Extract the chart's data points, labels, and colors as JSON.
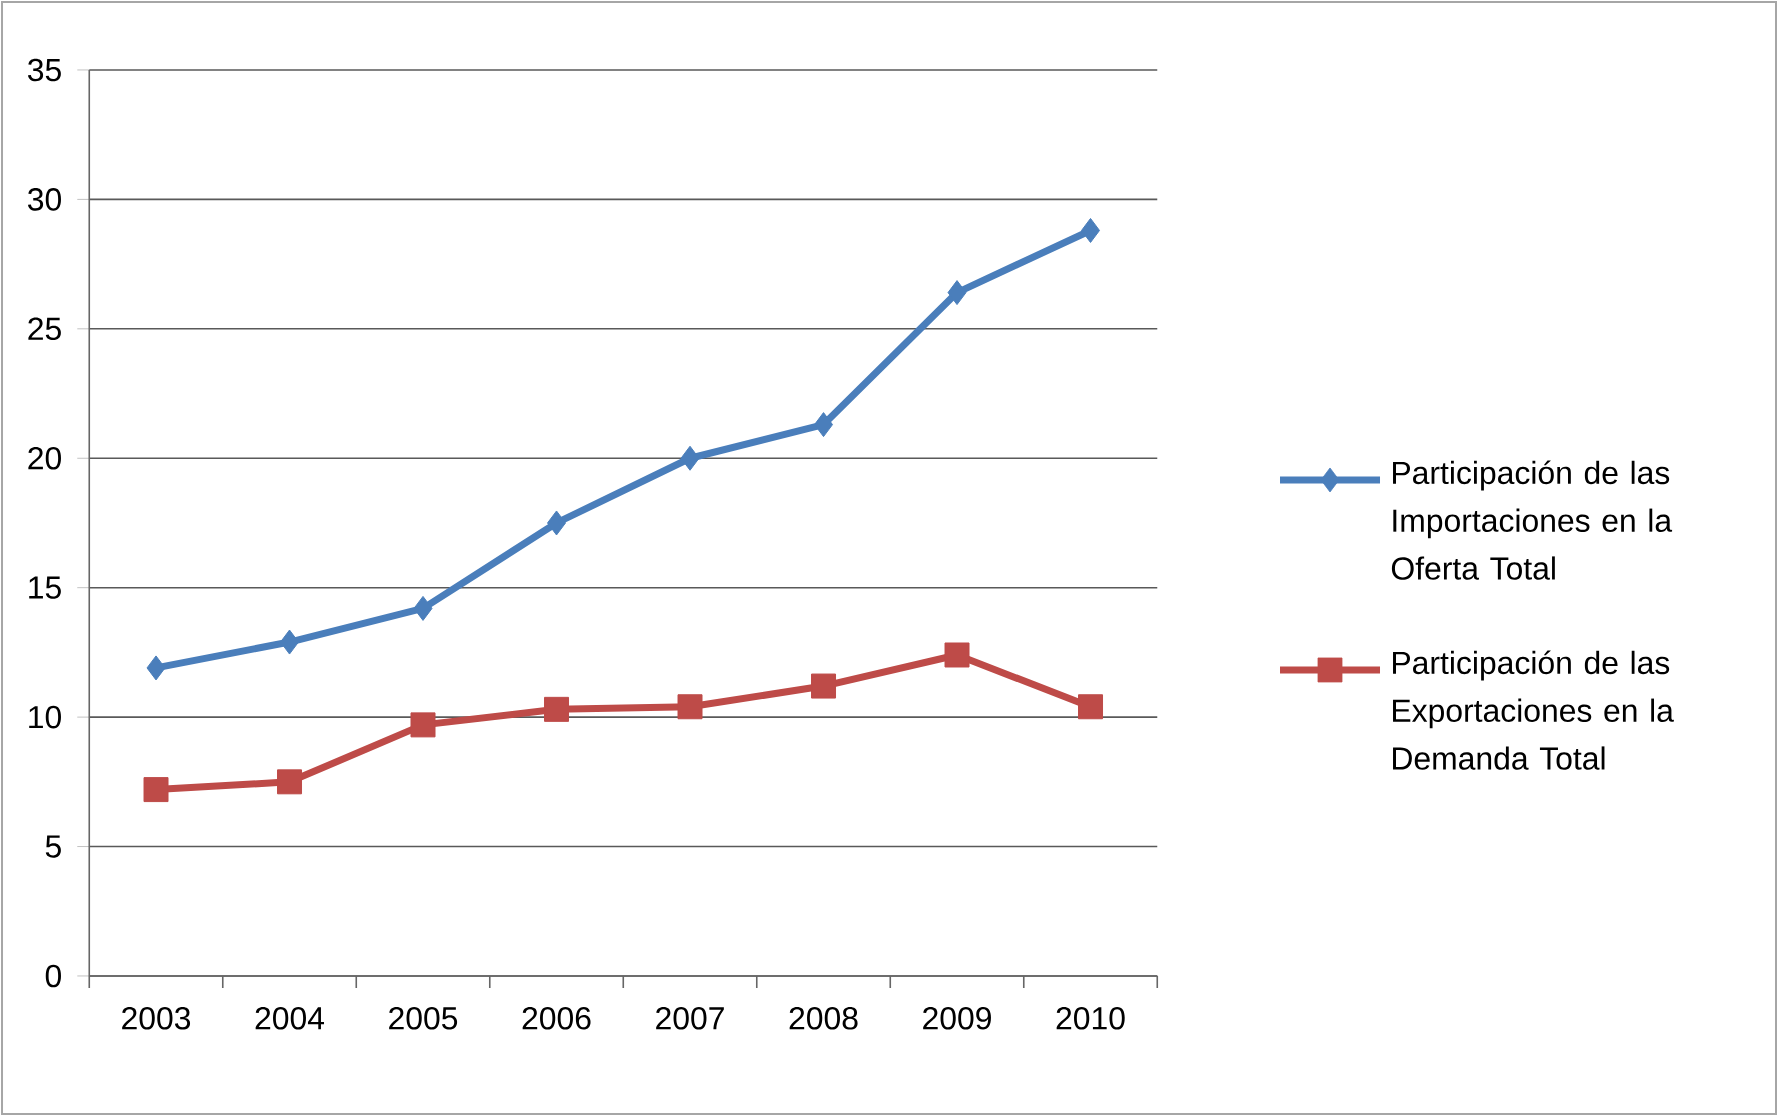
{
  "chart_data": {
    "type": "line",
    "categories": [
      "2003",
      "2004",
      "2005",
      "2006",
      "2007",
      "2008",
      "2009",
      "2010"
    ],
    "series": [
      {
        "name": "Participación de las Importaciones en la Oferta Total",
        "color": "#4a7ebb",
        "marker": "diamond",
        "values": [
          11.9,
          12.9,
          14.2,
          17.5,
          20.0,
          21.3,
          26.4,
          28.8
        ]
      },
      {
        "name": "Participación de las Exportaciones en la Demanda Total",
        "color": "#be4b48",
        "marker": "square",
        "values": [
          7.2,
          7.5,
          9.7,
          10.3,
          10.4,
          11.2,
          12.4,
          10.4
        ]
      }
    ],
    "ylim": [
      0,
      35
    ],
    "yticks": [
      0,
      5,
      10,
      15,
      20,
      25,
      30,
      35
    ],
    "grid": "y",
    "legend": "right"
  }
}
